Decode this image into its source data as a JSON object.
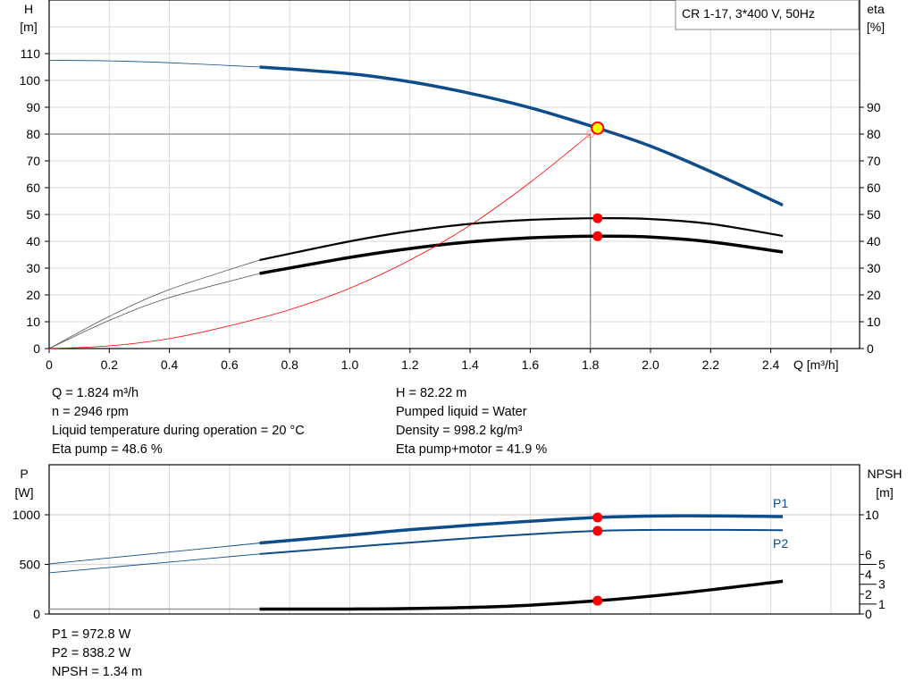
{
  "legend_box": "CR 1-17, 3*400 V, 50Hz",
  "colors": {
    "blue": "#0f4c8a",
    "red": "#ff0000",
    "black": "#000000",
    "grid": "#d9d9d9"
  },
  "chart_data": [
    {
      "type": "line",
      "xlabel": "Q [m³/h]",
      "ylabel": "H",
      "ylabel_unit": "[m]",
      "y2label": "eta",
      "y2label_unit": "[%]",
      "xlim": [
        0,
        2.7
      ],
      "ylim": [
        0,
        130
      ],
      "grid": true,
      "x_ticks": [
        "0",
        "0.2",
        "0.4",
        "0.6",
        "0.8",
        "1.0",
        "1.2",
        "1.4",
        "1.6",
        "1.8",
        "2.0",
        "2.2",
        "2.4"
      ],
      "y_ticks": [
        "0",
        "10",
        "20",
        "30",
        "40",
        "50",
        "60",
        "70",
        "80",
        "90",
        "100",
        "110"
      ],
      "y2_ticks": [
        "0",
        "10",
        "20",
        "30",
        "40",
        "50",
        "60",
        "70",
        "80",
        "90"
      ],
      "series": [
        {
          "id": "H",
          "color": "#0f4c8a",
          "x": [
            0,
            0.2,
            0.4,
            0.7,
            1.0,
            1.2,
            1.4,
            1.6,
            1.824,
            2.0,
            2.2,
            2.44
          ],
          "y": [
            107.5,
            107.3,
            106.6,
            105,
            102.5,
            99.5,
            95.2,
            89.8,
            82.22,
            75.5,
            66,
            53.5
          ]
        },
        {
          "id": "eta-pump",
          "color": "#000000",
          "x": [
            0,
            0.2,
            0.4,
            0.7,
            1.0,
            1.2,
            1.4,
            1.6,
            1.824,
            2.0,
            2.2,
            2.44
          ],
          "y": [
            0,
            12,
            22,
            33,
            40,
            43.8,
            46.5,
            48,
            48.6,
            48.3,
            46.5,
            42
          ]
        },
        {
          "id": "eta-pump-motor",
          "color": "#000000",
          "x": [
            0,
            0.2,
            0.4,
            0.7,
            1.0,
            1.2,
            1.4,
            1.6,
            1.824,
            2.0,
            2.2,
            2.44
          ],
          "y": [
            0,
            10.5,
            19,
            28,
            34,
            37.3,
            39.8,
            41.3,
            41.9,
            41.6,
            39.8,
            36
          ]
        },
        {
          "id": "system",
          "color": "#ff0000",
          "x": [
            0,
            0.2,
            0.4,
            0.6,
            0.8,
            1.0,
            1.2,
            1.4,
            1.6,
            1.8
          ],
          "y": [
            0,
            1,
            3.7,
            8.5,
            14.5,
            22.5,
            33,
            46,
            62,
            80
          ]
        }
      ],
      "operating_point": {
        "Q": 1.824,
        "H": 82.22,
        "eta_pump": 48.6,
        "eta_pump_motor": 41.9
      },
      "crosshair": {
        "Q": 1.8,
        "H": 80
      }
    },
    {
      "type": "line",
      "ylabel": "P",
      "ylabel_unit": "[W]",
      "y2label": "NPSH",
      "y2label_unit": "[m]",
      "xlim": [
        0,
        2.7
      ],
      "ylim": [
        0,
        1500
      ],
      "y2lim": [
        0,
        15
      ],
      "grid": true,
      "y_ticks": [
        "0",
        "500",
        "1000"
      ],
      "y2_ticks": [
        "0",
        "1",
        "2",
        "3",
        "4",
        "5",
        "6",
        "10"
      ],
      "series": [
        {
          "id": "P1",
          "name": "P1",
          "color": "#0f4c8a",
          "x": [
            0,
            0.7,
            1.0,
            1.2,
            1.5,
            1.824,
            2.1,
            2.44
          ],
          "y": [
            505,
            715,
            795,
            850,
            915,
            972.8,
            990,
            982
          ]
        },
        {
          "id": "P2",
          "name": "P2",
          "color": "#0f4c8a",
          "x": [
            0,
            0.7,
            1.0,
            1.2,
            1.5,
            1.824,
            2.1,
            2.44
          ],
          "y": [
            415,
            605,
            675,
            720,
            785,
            838.2,
            848,
            845
          ]
        },
        {
          "id": "NPSH",
          "color": "#000000",
          "axis": "y2",
          "x": [
            0,
            0.7,
            1.0,
            1.2,
            1.5,
            1.824,
            2.1,
            2.44
          ],
          "y": [
            0.5,
            0.5,
            0.5,
            0.55,
            0.75,
            1.34,
            2.1,
            3.3
          ]
        }
      ],
      "operating_point": {
        "Q": 1.824,
        "P1": 972.8,
        "P2": 838.2,
        "NPSH": 1.34
      }
    }
  ],
  "info_left": [
    "Q = 1.824 m³/h",
    "n = 2946 rpm",
    "Liquid temperature during operation = 20 °C",
    "Eta pump = 48.6 %"
  ],
  "info_right": [
    "H = 82.22 m",
    "Pumped liquid = Water",
    "Density = 998.2 kg/m³",
    "Eta pump+motor = 41.9 %"
  ],
  "info_bottom": [
    "P1 = 972.8 W",
    "P2 = 838.2 W",
    "NPSH = 1.34 m"
  ]
}
